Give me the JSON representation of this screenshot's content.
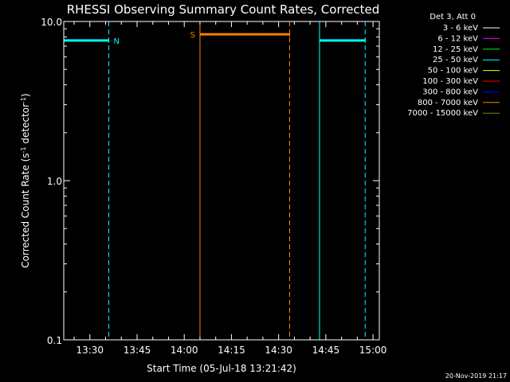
{
  "chart_data": {
    "type": "line",
    "title": "RHESSI Observing Summary Count Rates, Corrected",
    "xlabel": "Start Time (05-Jul-18 13:21:42)",
    "ylabel_main": "Corrected Count Rate (s",
    "ylabel_sup1": "-1",
    "ylabel_mid": " detector",
    "ylabel_sup2": "-1",
    "ylabel_end": ")",
    "y_scale": "log",
    "ylim": [
      0.1,
      10.0
    ],
    "xlim": [
      "13:21:42",
      "15:02:00"
    ],
    "x_ticks": [
      "13:30",
      "13:45",
      "14:00",
      "14:15",
      "14:30",
      "14:45",
      "15:00"
    ],
    "y_ticks": [
      "0.1",
      "1.0",
      "10.0"
    ],
    "legend_header": "Det 3, Att 0",
    "legend": [
      {
        "label": "3 - 6 keV",
        "color": "#ffffff"
      },
      {
        "label": "6 - 12 keV",
        "color": "#ff00ff"
      },
      {
        "label": "12 - 25 keV",
        "color": "#00ff00"
      },
      {
        "label": "25 - 50 keV",
        "color": "#00ffff"
      },
      {
        "label": "50 - 100 keV",
        "color": "#ffff00"
      },
      {
        "label": "100 - 300 keV",
        "color": "#ff0000"
      },
      {
        "label": "300 - 800 keV",
        "color": "#0000ff"
      },
      {
        "label": "800 - 7000 keV",
        "color": "#ff8000"
      },
      {
        "label": "7000 - 15000 keV",
        "color": "#808000"
      }
    ],
    "series": [
      {
        "name": "25 - 50 keV",
        "color": "#00ffff",
        "segments": [
          {
            "x": [
              "13:21:42",
              "13:36:00"
            ],
            "y": [
              7.6,
              7.6
            ]
          },
          {
            "x": [
              "14:43:00",
              "14:57:30"
            ],
            "y": [
              7.6,
              7.6
            ]
          }
        ]
      },
      {
        "name": "800 - 7000 keV",
        "color": "#ff8000",
        "segments": [
          {
            "x": [
              "14:05:00",
              "14:33:30"
            ],
            "y": [
              8.3,
              8.3
            ]
          }
        ]
      }
    ],
    "vertical_markers": [
      {
        "time": "13:21:42",
        "color": "#00ffff",
        "style": "solid"
      },
      {
        "time": "13:36:00",
        "color": "#00ffff",
        "style": "dashed"
      },
      {
        "time": "14:43:00",
        "color": "#00ffff",
        "style": "solid"
      },
      {
        "time": "14:57:30",
        "color": "#00ffff",
        "style": "dashed"
      },
      {
        "time": "14:05:00",
        "color": "#ff8000",
        "style": "solid"
      },
      {
        "time": "14:33:30",
        "color": "#ff8000",
        "style": "dashed"
      }
    ],
    "annotations": [
      {
        "text": "N",
        "color": "#00ffff",
        "time": "13:36:00",
        "y": 7.6,
        "side": "right"
      },
      {
        "text": "S",
        "color": "#ff8000",
        "time": "14:05:00",
        "y": 8.3,
        "side": "left"
      }
    ],
    "footer": "20-Nov-2019 21:17"
  },
  "colors": {
    "background": "#000000",
    "axes": "#ffffff"
  }
}
